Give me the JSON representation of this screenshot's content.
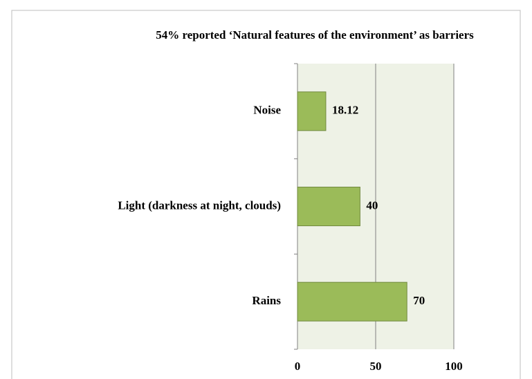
{
  "chart_data": {
    "type": "bar",
    "orientation": "horizontal",
    "title": "54% reported ‘Natural features of the environment’ as barriers",
    "categories": [
      "Noise",
      "Light (darkness  at night, clouds)",
      "Rains"
    ],
    "values": [
      18.12,
      40,
      70
    ],
    "color": "#9bbb59",
    "xlim": [
      0,
      100
    ],
    "xticks": [
      0,
      50,
      100
    ],
    "grid": true
  }
}
